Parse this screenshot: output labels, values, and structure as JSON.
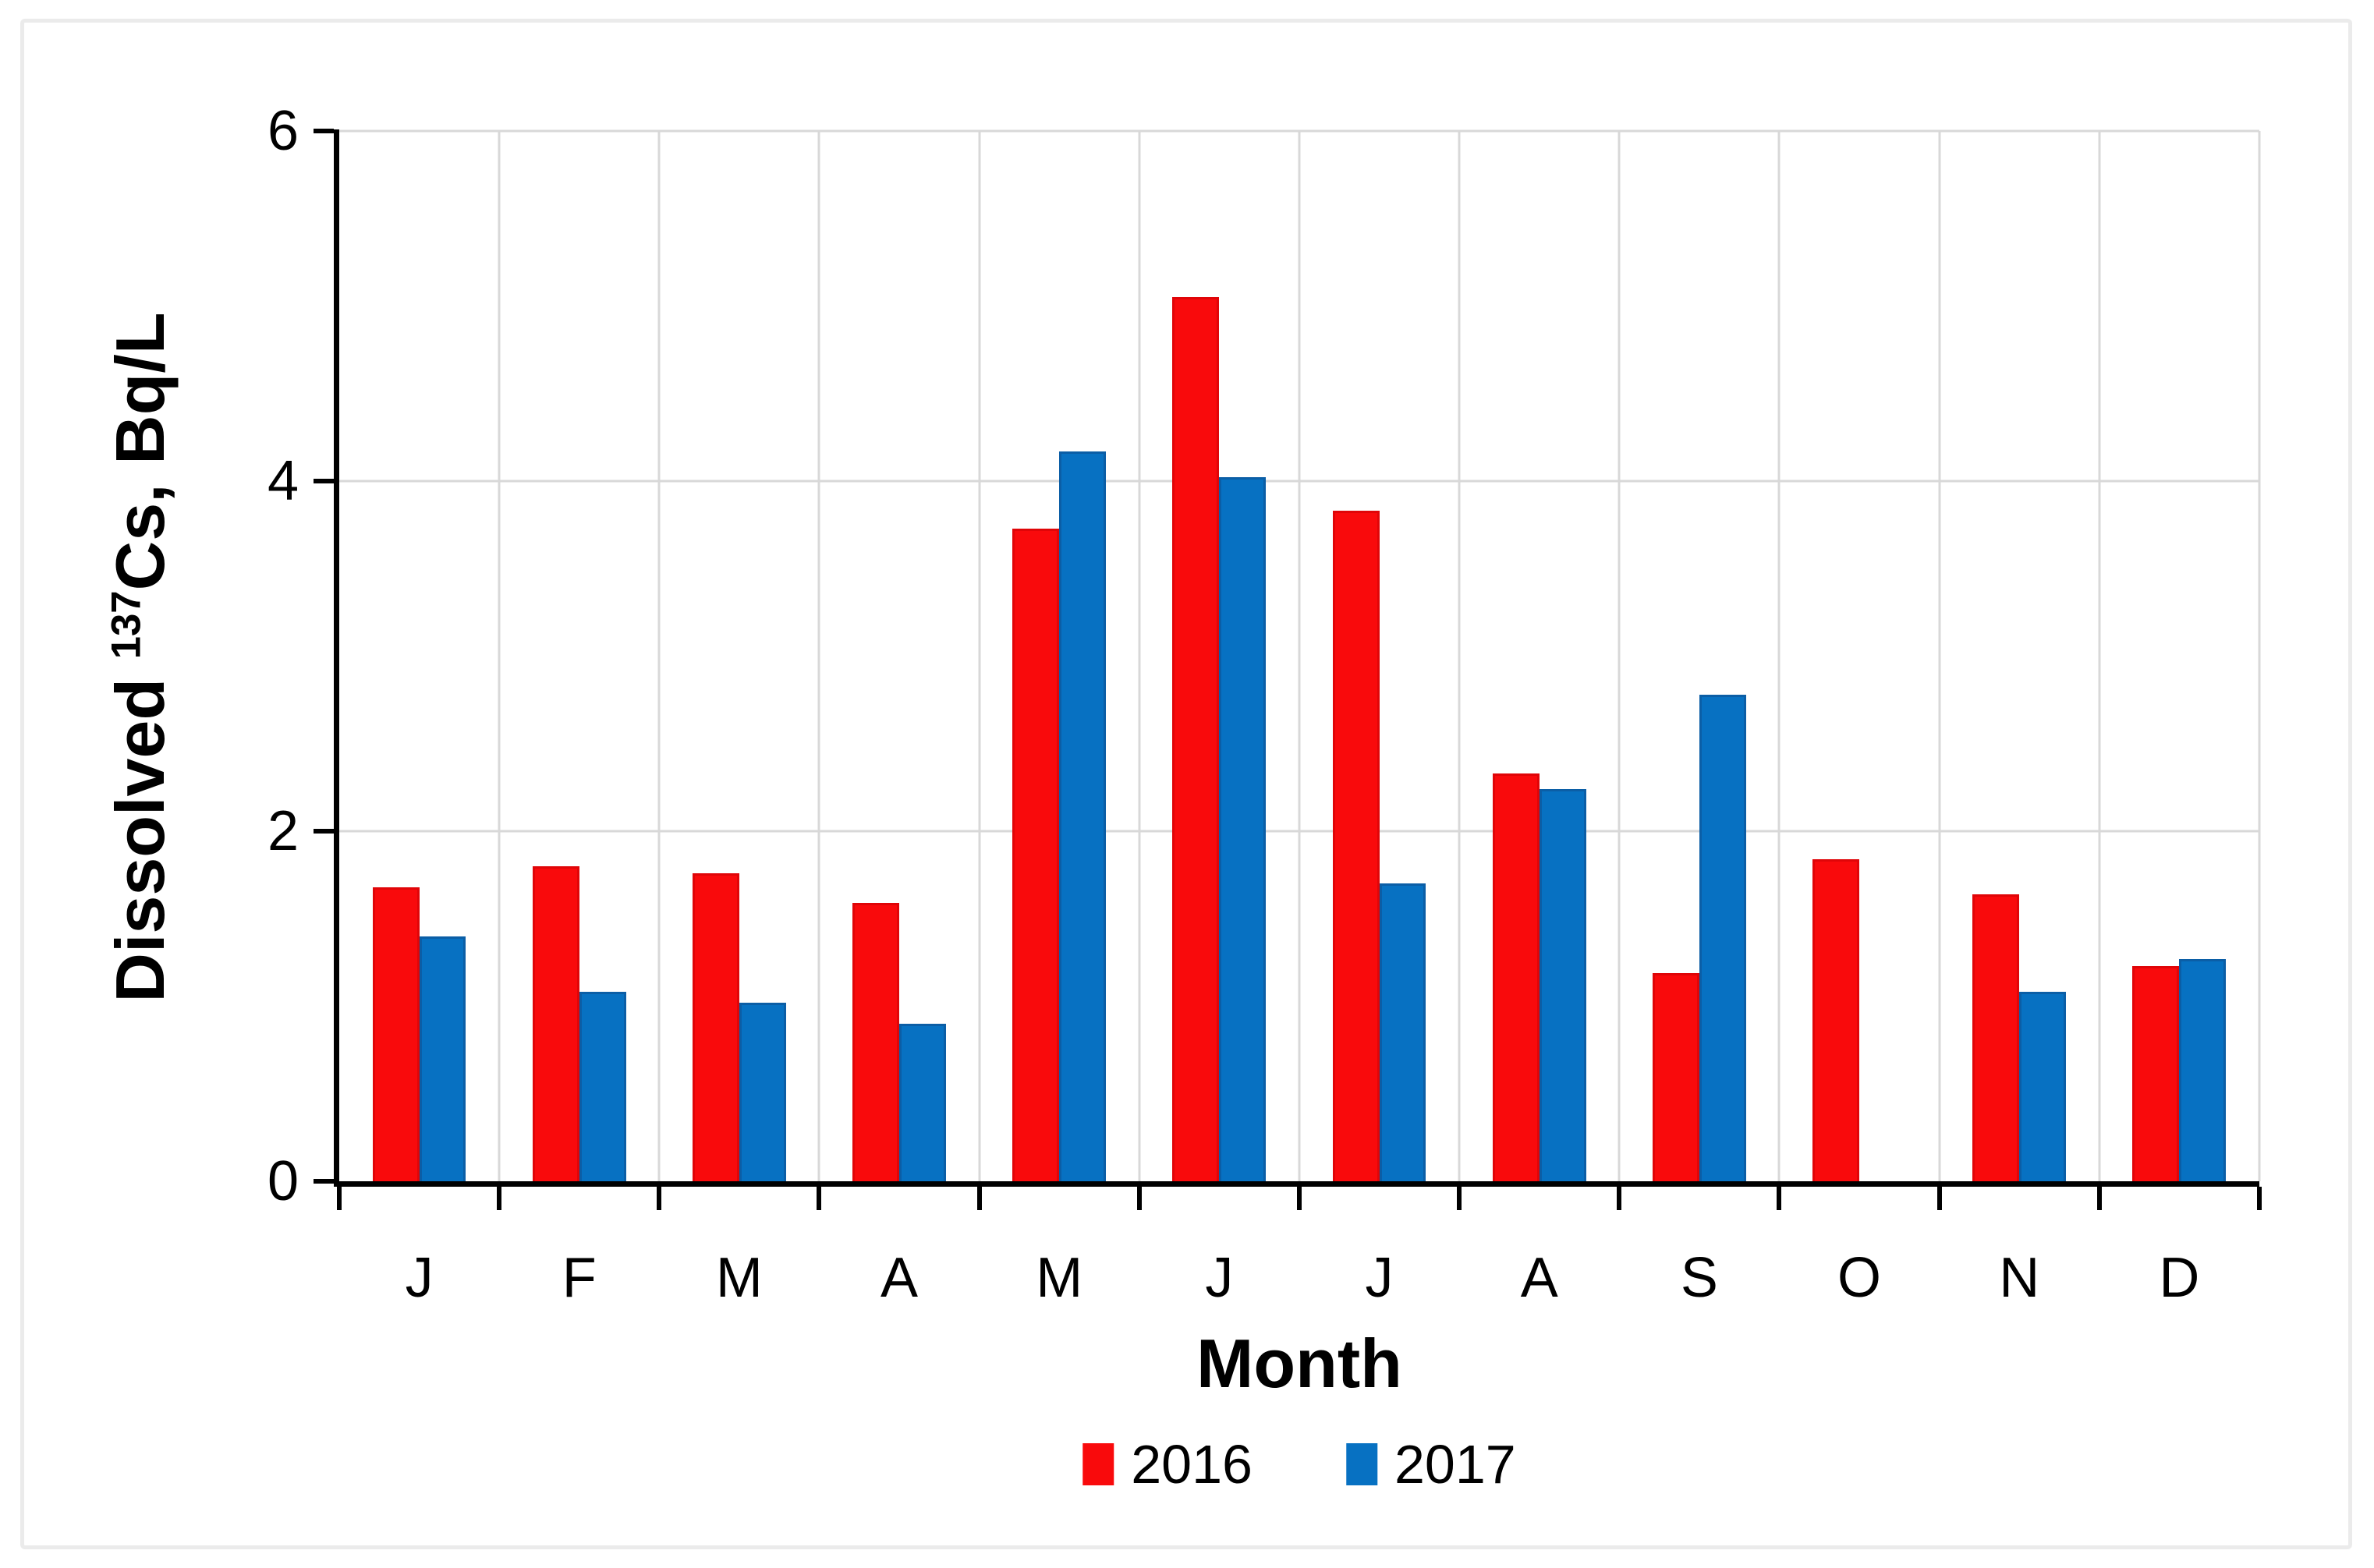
{
  "figure": {
    "background": "#FFFFFF",
    "frame_color": "#EBEBEB"
  },
  "chart_data": {
    "type": "bar",
    "title": "",
    "xlabel": "Month",
    "ylabel": "Dissolved 137Cs, Bq/L",
    "ylabel_parts": {
      "prefix": "Dissolved ",
      "superscript": "137",
      "suffix": "Cs, Bq/L"
    },
    "categories": [
      "J",
      "F",
      "M",
      "A",
      "M",
      "J",
      "J",
      "A",
      "S",
      "O",
      "N",
      "D"
    ],
    "series": [
      {
        "name": "2016",
        "color": "#F90A0C",
        "values": [
          1.68,
          1.8,
          1.76,
          1.59,
          3.73,
          5.05,
          3.83,
          2.33,
          1.19,
          1.84,
          1.64,
          1.23
        ]
      },
      {
        "name": "2017",
        "color": "#0771C2",
        "values": [
          1.4,
          1.08,
          1.02,
          0.9,
          4.17,
          4.02,
          1.7,
          2.24,
          2.78,
          null,
          1.08,
          1.27
        ]
      }
    ],
    "ylim": [
      0,
      6
    ],
    "yticks": [
      0,
      2,
      4,
      6
    ],
    "grid": {
      "color": "#D8D8D8",
      "horizontal": true,
      "vertical": true
    },
    "legend_position": "bottom"
  }
}
